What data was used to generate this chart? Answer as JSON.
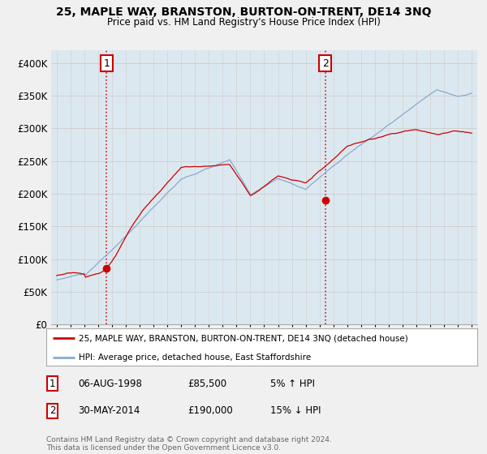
{
  "title": "25, MAPLE WAY, BRANSTON, BURTON-ON-TRENT, DE14 3NQ",
  "subtitle": "Price paid vs. HM Land Registry's House Price Index (HPI)",
  "legend_line1": "25, MAPLE WAY, BRANSTON, BURTON-ON-TRENT, DE14 3NQ (detached house)",
  "legend_line2": "HPI: Average price, detached house, East Staffordshire",
  "annotation1_date": "06-AUG-1998",
  "annotation1_price": "£85,500",
  "annotation1_hpi": "5% ↑ HPI",
  "annotation2_date": "30-MAY-2014",
  "annotation2_price": "£190,000",
  "annotation2_hpi": "15% ↓ HPI",
  "footer": "Contains HM Land Registry data © Crown copyright and database right 2024.\nThis data is licensed under the Open Government Licence v3.0.",
  "price_color": "#cc0000",
  "hpi_color": "#88aacc",
  "dashed_line_color": "#cc0000",
  "background_color": "#f0f0f0",
  "plot_bg_color": "#dce8f0",
  "ylim": [
    0,
    420000
  ],
  "yticks": [
    0,
    50000,
    100000,
    150000,
    200000,
    250000,
    300000,
    350000,
    400000
  ],
  "sale1_year": 1998.6,
  "sale1_price": 85500,
  "sale2_year": 2014.42,
  "sale2_price": 190000
}
